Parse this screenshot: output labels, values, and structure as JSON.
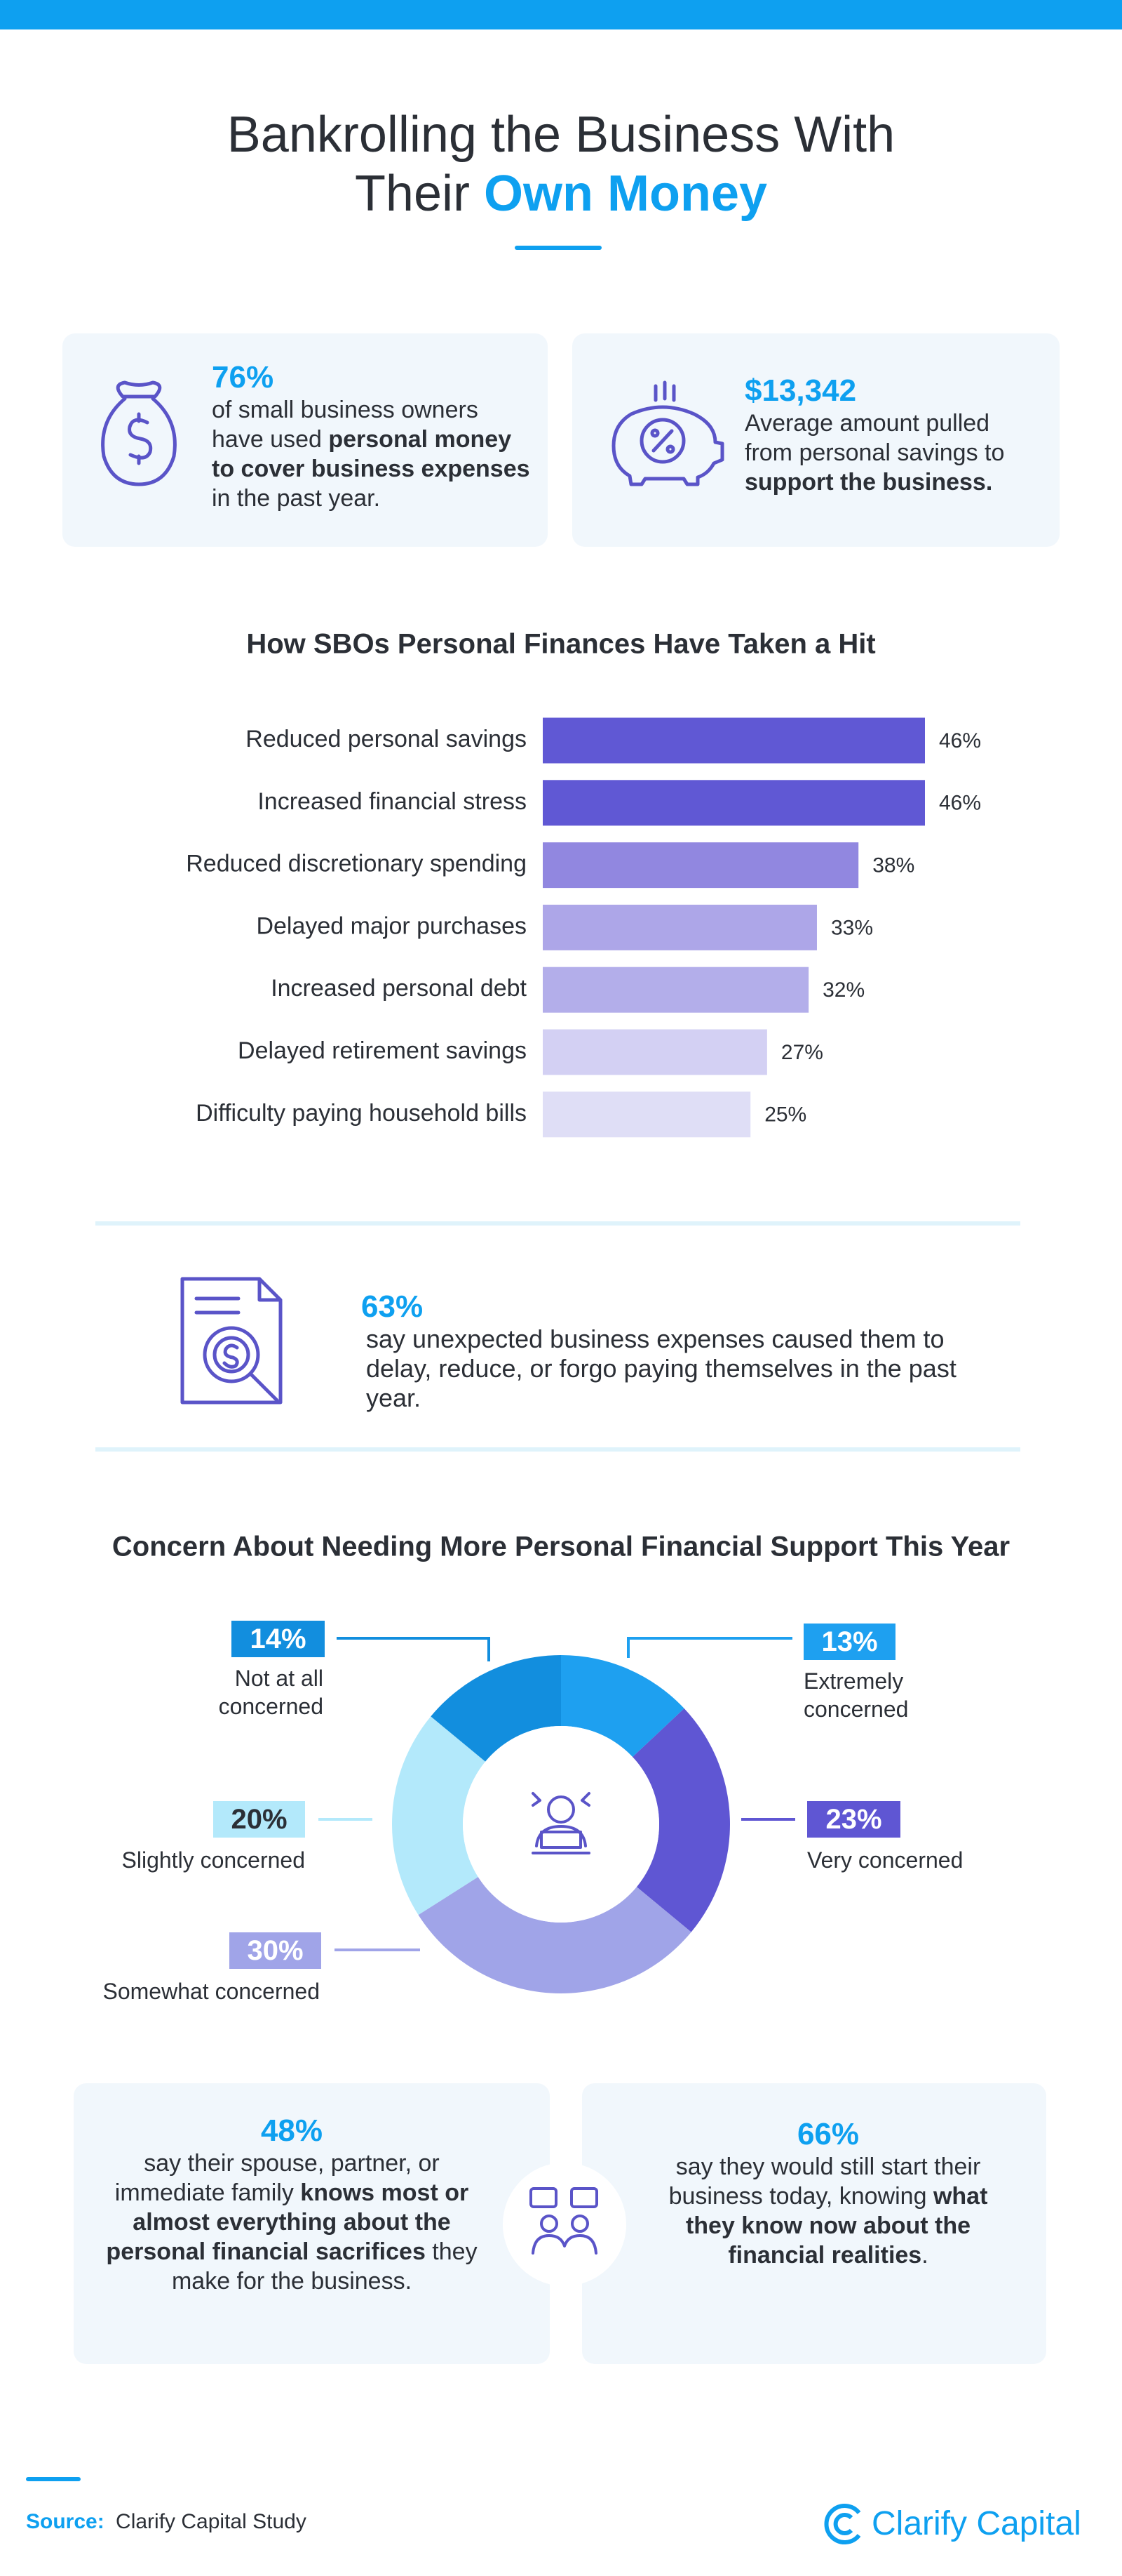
{
  "header": {
    "title_line1": "Bankrolling the Business With",
    "title_line2": "Their",
    "title_highlight": "Own Money"
  },
  "stats": [
    {
      "value": "76%",
      "text": [
        {
          "text": "of small business owners have used ",
          "bold": false
        },
        {
          "text": "personal money to cover business expenses",
          "bold": true
        },
        {
          "text": " in the past year.",
          "bold": false
        }
      ]
    },
    {
      "value": "$13,342",
      "text": [
        {
          "text": "Average amount pulled from personal savings to ",
          "bold": false
        },
        {
          "text": "support the business.",
          "bold": true
        }
      ]
    }
  ],
  "chart_data": [
    {
      "type": "bar",
      "orientation": "horizontal",
      "title": "How SBOs Personal Finances Have Taken a Hit",
      "categories": [
        "Reduced personal savings",
        "Increased financial stress",
        "Reduced discretionary spending",
        "Delayed major purchases",
        "Increased personal debt",
        "Delayed retirement savings",
        "Difficulty paying household bills"
      ],
      "values": [
        46,
        46,
        38,
        33,
        32,
        27,
        25
      ],
      "value_labels": [
        "46%",
        "46%",
        "38%",
        "33%",
        "32%",
        "27%",
        "25%"
      ],
      "colors": [
        "#6058d4",
        "#6058d4",
        "#9187e0",
        "#ada6e8",
        "#b3aeea",
        "#d3d0f3",
        "#dfdef6"
      ]
    },
    {
      "type": "donut",
      "title": "Concern About Needing More Personal Financial Support This Year",
      "categories": [
        "Extremely concerned",
        "Very concerned",
        "Somewhat concerned",
        "Slightly concerned",
        "Not at all concerned"
      ],
      "values": [
        13,
        23,
        30,
        20,
        14
      ],
      "value_labels": [
        "13%",
        "23%",
        "30%",
        "20%",
        "14%"
      ],
      "colors": [
        "#1ea0f0",
        "#5f56d3",
        "#a0a4e8",
        "#b3e9fb",
        "#128ede"
      ],
      "label_text_colors": [
        "#ffffff",
        "#ffffff",
        "#ffffff",
        "#2b2f36",
        "#ffffff"
      ]
    }
  ],
  "callout": {
    "value": "63%",
    "text": "say unexpected business expenses caused them to delay, reduce, or forgo paying themselves in the past year."
  },
  "cards": [
    {
      "value": "48%",
      "text": [
        {
          "text": "say their spouse, partner, or immediate family ",
          "bold": false
        },
        {
          "text": "knows most or almost everything about the personal financial sacrifices",
          "bold": true
        },
        {
          "text": " they make for the business.",
          "bold": false
        }
      ]
    },
    {
      "value": "66%",
      "text": [
        {
          "text": "say they would still start their business today, knowing ",
          "bold": false
        },
        {
          "text": "what they know now about the financial realities",
          "bold": true
        },
        {
          "text": ".",
          "bold": false
        }
      ]
    }
  ],
  "footer": {
    "source_label": "Source:",
    "source": "Clarify Capital Study",
    "brand": "Clarify Capital"
  }
}
